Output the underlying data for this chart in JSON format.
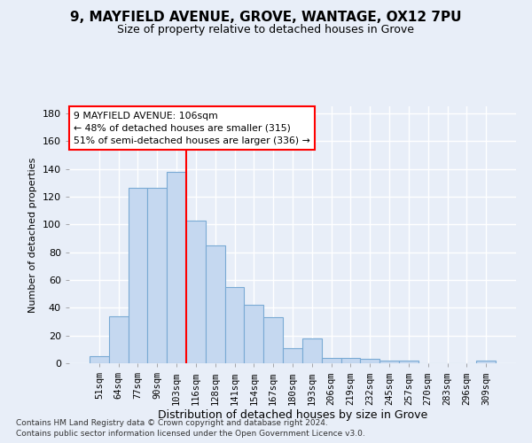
{
  "title1": "9, MAYFIELD AVENUE, GROVE, WANTAGE, OX12 7PU",
  "title2": "Size of property relative to detached houses in Grove",
  "xlabel": "Distribution of detached houses by size in Grove",
  "ylabel": "Number of detached properties",
  "categories": [
    "51sqm",
    "64sqm",
    "77sqm",
    "90sqm",
    "103sqm",
    "116sqm",
    "128sqm",
    "141sqm",
    "154sqm",
    "167sqm",
    "180sqm",
    "193sqm",
    "206sqm",
    "219sqm",
    "232sqm",
    "245sqm",
    "257sqm",
    "270sqm",
    "283sqm",
    "296sqm",
    "309sqm"
  ],
  "values": [
    5,
    34,
    126,
    126,
    138,
    103,
    85,
    55,
    42,
    33,
    11,
    18,
    4,
    4,
    3,
    2,
    2,
    0,
    0,
    0,
    2
  ],
  "bar_color": "#c5d8f0",
  "bar_edge_color": "#7aaad4",
  "vertical_line_x": 4.5,
  "annotation_text": "9 MAYFIELD AVENUE: 106sqm\n← 48% of detached houses are smaller (315)\n51% of semi-detached houses are larger (336) →",
  "annotation_box_color": "white",
  "annotation_box_edge": "red",
  "ylim": [
    0,
    185
  ],
  "yticks": [
    0,
    20,
    40,
    60,
    80,
    100,
    120,
    140,
    160,
    180
  ],
  "footnote1": "Contains HM Land Registry data © Crown copyright and database right 2024.",
  "footnote2": "Contains public sector information licensed under the Open Government Licence v3.0.",
  "background_color": "#e8eef8",
  "grid_color": "white",
  "title1_fontsize": 11,
  "title2_fontsize": 9
}
